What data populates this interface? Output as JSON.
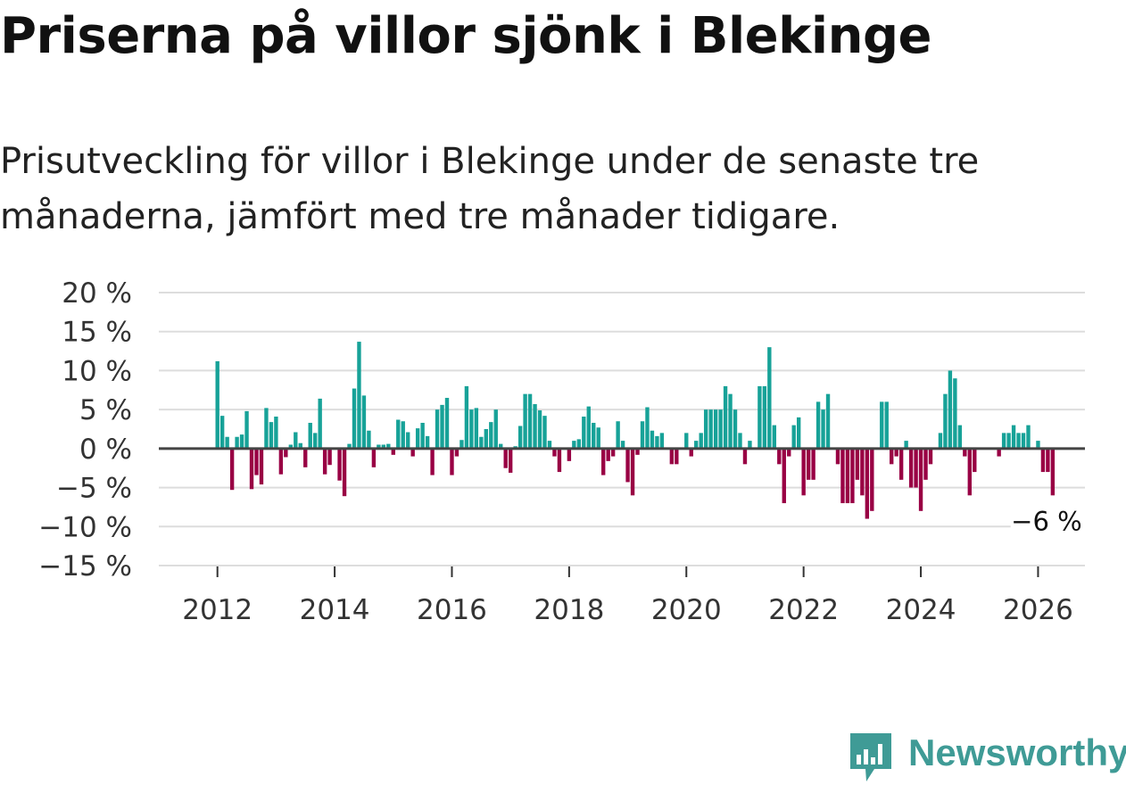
{
  "title": "Priserna på villor sjönk i Blekinge",
  "subtitle": "Prisutveckling för villor i Blekinge under de senaste tre månaderna, jämfört med tre månader tidigare.",
  "brand": {
    "name": "Newsworthy",
    "icon": "newsworthy-logo-icon"
  },
  "colors": {
    "positive": "#17a298",
    "negative": "#990044",
    "grid": "#dddddd",
    "zero": "#444444",
    "brand": "#3f9b96"
  },
  "chart_data": {
    "type": "bar",
    "title": "Priserna på villor sjönk i Blekinge",
    "xlabel": "",
    "ylabel": "",
    "ylim": [
      -15,
      20
    ],
    "xlim": [
      2011.0,
      2026.8
    ],
    "grid": true,
    "y_ticks": [
      20,
      15,
      10,
      5,
      0,
      -5,
      -10,
      -15
    ],
    "y_tick_labels": [
      "20 %",
      "15 %",
      "10 %",
      "5 %",
      "0 %",
      "−5 %",
      "−10 %",
      "−15 %"
    ],
    "x_ticks": [
      2012,
      2014,
      2016,
      2018,
      2020,
      2022,
      2024,
      2026
    ],
    "x_tick_labels": [
      "2012",
      "2014",
      "2016",
      "2018",
      "2020",
      "2022",
      "2024",
      "2026"
    ],
    "start_year": 2012,
    "start_month": 1,
    "annotation": {
      "text": "−6 %",
      "x": 2026.08,
      "y": -6
    },
    "values": [
      11.2,
      4.2,
      1.5,
      -5.3,
      1.5,
      1.8,
      4.8,
      -5.2,
      -3.4,
      -4.6,
      5.2,
      3.4,
      4.1,
      -3.3,
      -1.1,
      0.5,
      2.1,
      0.7,
      -2.4,
      3.3,
      2.0,
      6.4,
      -3.3,
      -2.1,
      0.0,
      -4.1,
      -6.1,
      0.6,
      7.7,
      13.7,
      6.8,
      2.3,
      -2.4,
      0.5,
      0.5,
      0.6,
      -0.8,
      3.7,
      3.5,
      2.1,
      -1.0,
      2.6,
      3.3,
      1.6,
      -3.4,
      5.0,
      5.6,
      6.5,
      -3.4,
      -1.0,
      1.1,
      8.0,
      5.0,
      5.2,
      1.5,
      2.5,
      3.4,
      5.0,
      0.6,
      -2.5,
      -3.1,
      0.3,
      2.9,
      7.0,
      7.0,
      5.7,
      4.9,
      4.2,
      1.0,
      -1.0,
      -3.0,
      0.0,
      -1.6,
      1.0,
      1.2,
      4.1,
      5.4,
      3.3,
      2.7,
      -3.4,
      -1.6,
      -1.0,
      3.5,
      1.0,
      -4.3,
      -6.0,
      -0.8,
      3.5,
      5.3,
      2.3,
      1.6,
      2.0,
      0.0,
      -2.0,
      -2.0,
      0.0,
      2.0,
      -1.0,
      1.0,
      2.0,
      5.0,
      5.0,
      5.0,
      5.0,
      8.0,
      7.0,
      5.0,
      2.0,
      -2.0,
      1.0,
      0.0,
      8.0,
      8.0,
      13.0,
      3.0,
      -2.0,
      -7.0,
      -1.0,
      3.0,
      4.0,
      -6.0,
      -4.0,
      -4.0,
      6.0,
      5.0,
      7.0,
      0.0,
      -2.0,
      -7.0,
      -7.0,
      -7.0,
      -4.0,
      -6.0,
      -9.0,
      -8.0,
      0.0,
      6.0,
      6.0,
      -2.0,
      -1.0,
      -4.0,
      1.0,
      -5.0,
      -5.0,
      -8.0,
      -4.0,
      -2.0,
      0.0,
      2.0,
      7.0,
      10.0,
      9.0,
      3.0,
      -1.0,
      -6.0,
      -3.0,
      0.0,
      0.0,
      0.0,
      0.0,
      -1.0,
      2.0,
      2.0,
      3.0,
      2.0,
      2.0,
      3.0,
      0.0,
      1.0,
      -3.0,
      -3.0,
      -6.0
    ]
  }
}
